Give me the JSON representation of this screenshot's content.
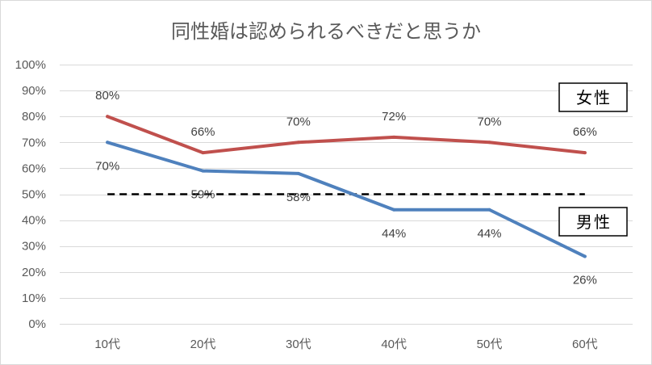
{
  "chart_data": {
    "type": "line",
    "title": "同性婚は認められるべきだと思うか",
    "categories": [
      "10代",
      "20代",
      "30代",
      "40代",
      "50代",
      "60代"
    ],
    "ylim": [
      0,
      100
    ],
    "yticks": [
      0,
      10,
      20,
      30,
      40,
      50,
      60,
      70,
      80,
      90,
      100
    ],
    "ytick_labels": [
      "0%",
      "10%",
      "20%",
      "30%",
      "40%",
      "50%",
      "60%",
      "70%",
      "80%",
      "90%",
      "100%"
    ],
    "grid": true,
    "legend": "right",
    "series": [
      {
        "name": "女性",
        "values": [
          80,
          66,
          70,
          72,
          70,
          66
        ],
        "data_labels": [
          "80%",
          "66%",
          "70%",
          "72%",
          "70%",
          "66%"
        ],
        "color": "#C0504D"
      },
      {
        "name": "男性",
        "values": [
          70,
          59,
          58,
          44,
          44,
          26
        ],
        "data_labels": [
          "70%",
          "59%",
          "58%",
          "44%",
          "44%",
          "26%"
        ],
        "color": "#4F81BD"
      }
    ],
    "reference_line": {
      "value": 50,
      "style": "dashed",
      "color": "#000000"
    }
  },
  "colors": {
    "title": "#595959",
    "axis_text": "#595959",
    "grid": "#D9D9D9",
    "label_text": "#404040"
  }
}
